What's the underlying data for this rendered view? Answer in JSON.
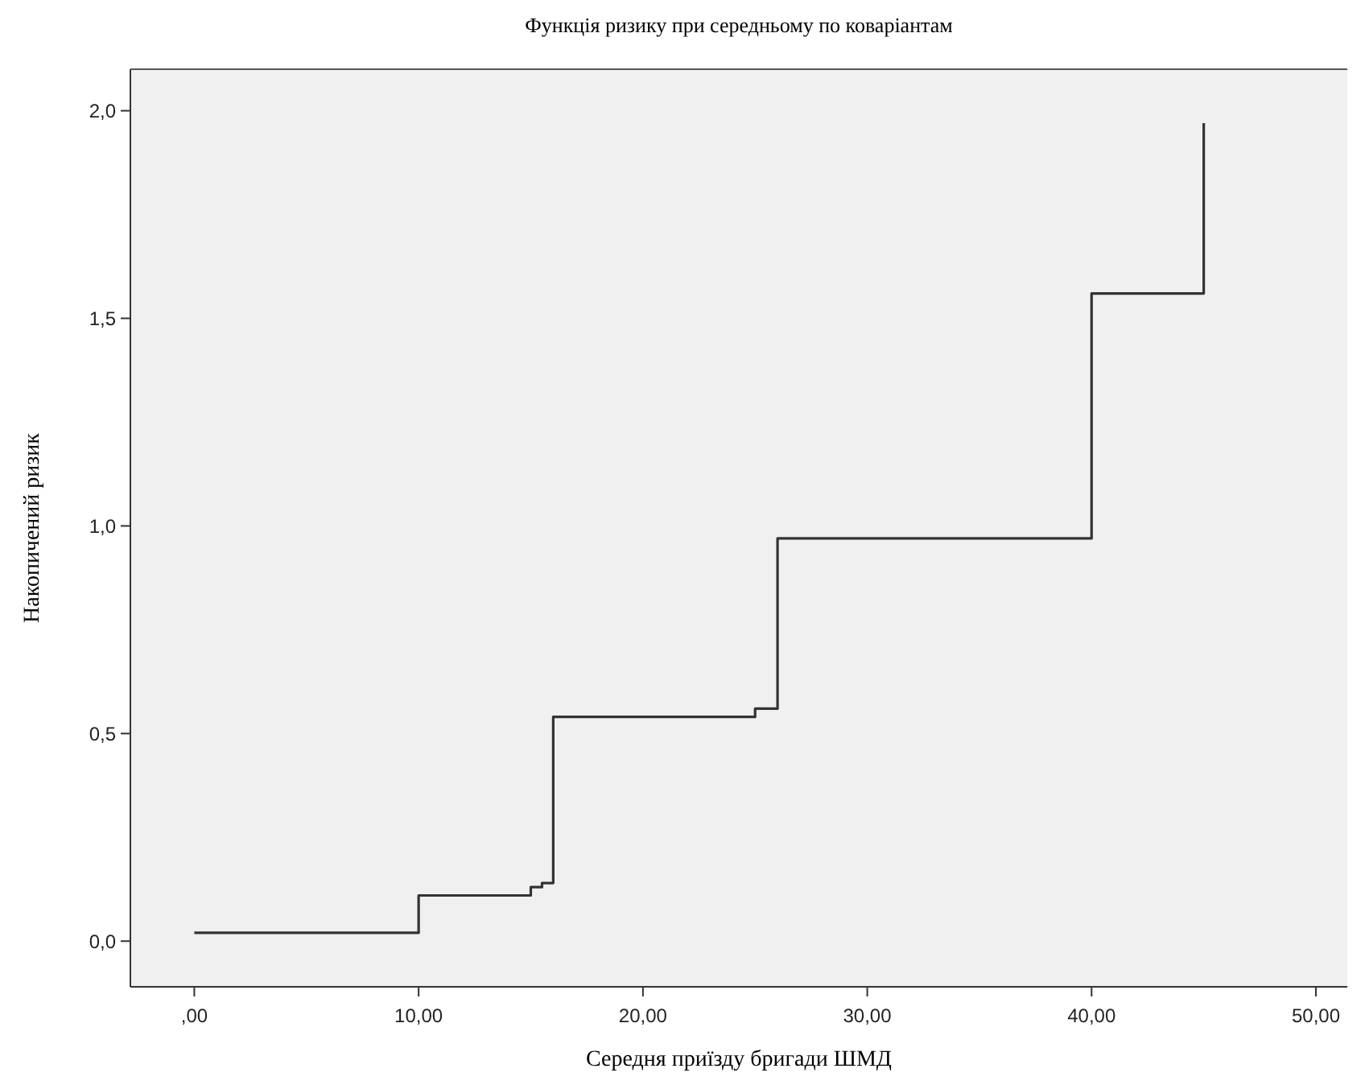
{
  "chart_data": {
    "type": "step",
    "title": "Функція  ризику при середньому по коваріантам",
    "xlabel": "Середня приїзду бригади ШМД",
    "ylabel": "Накопичений ризик",
    "x": [
      0,
      10,
      15,
      15.5,
      16,
      25,
      26,
      40,
      45
    ],
    "series": [
      {
        "color": "#333333",
        "values": [
          0.02,
          0.11,
          0.13,
          0.14,
          0.54,
          0.56,
          0.97,
          1.56,
          1.97
        ]
      }
    ],
    "xlim": [
      -2.85,
      51.4
    ],
    "xticks": [
      {
        "value": 0,
        "label": ",00"
      },
      {
        "value": 10,
        "label": "10,00"
      },
      {
        "value": 20,
        "label": "20,00"
      },
      {
        "value": 30,
        "label": "30,00"
      },
      {
        "value": 40,
        "label": "40,00"
      },
      {
        "value": 50,
        "label": "50,00"
      }
    ],
    "ylim": [
      -0.11,
      2.1
    ],
    "yticks": [
      {
        "value": 0,
        "label": "0,0"
      },
      {
        "value": 0.5,
        "label": "0,5"
      },
      {
        "value": 1,
        "label": "1,0"
      },
      {
        "value": 1.5,
        "label": "1,5"
      },
      {
        "value": 2,
        "label": "2,0"
      }
    ],
    "grid": false,
    "line_style": "solid",
    "marker": "none"
  }
}
